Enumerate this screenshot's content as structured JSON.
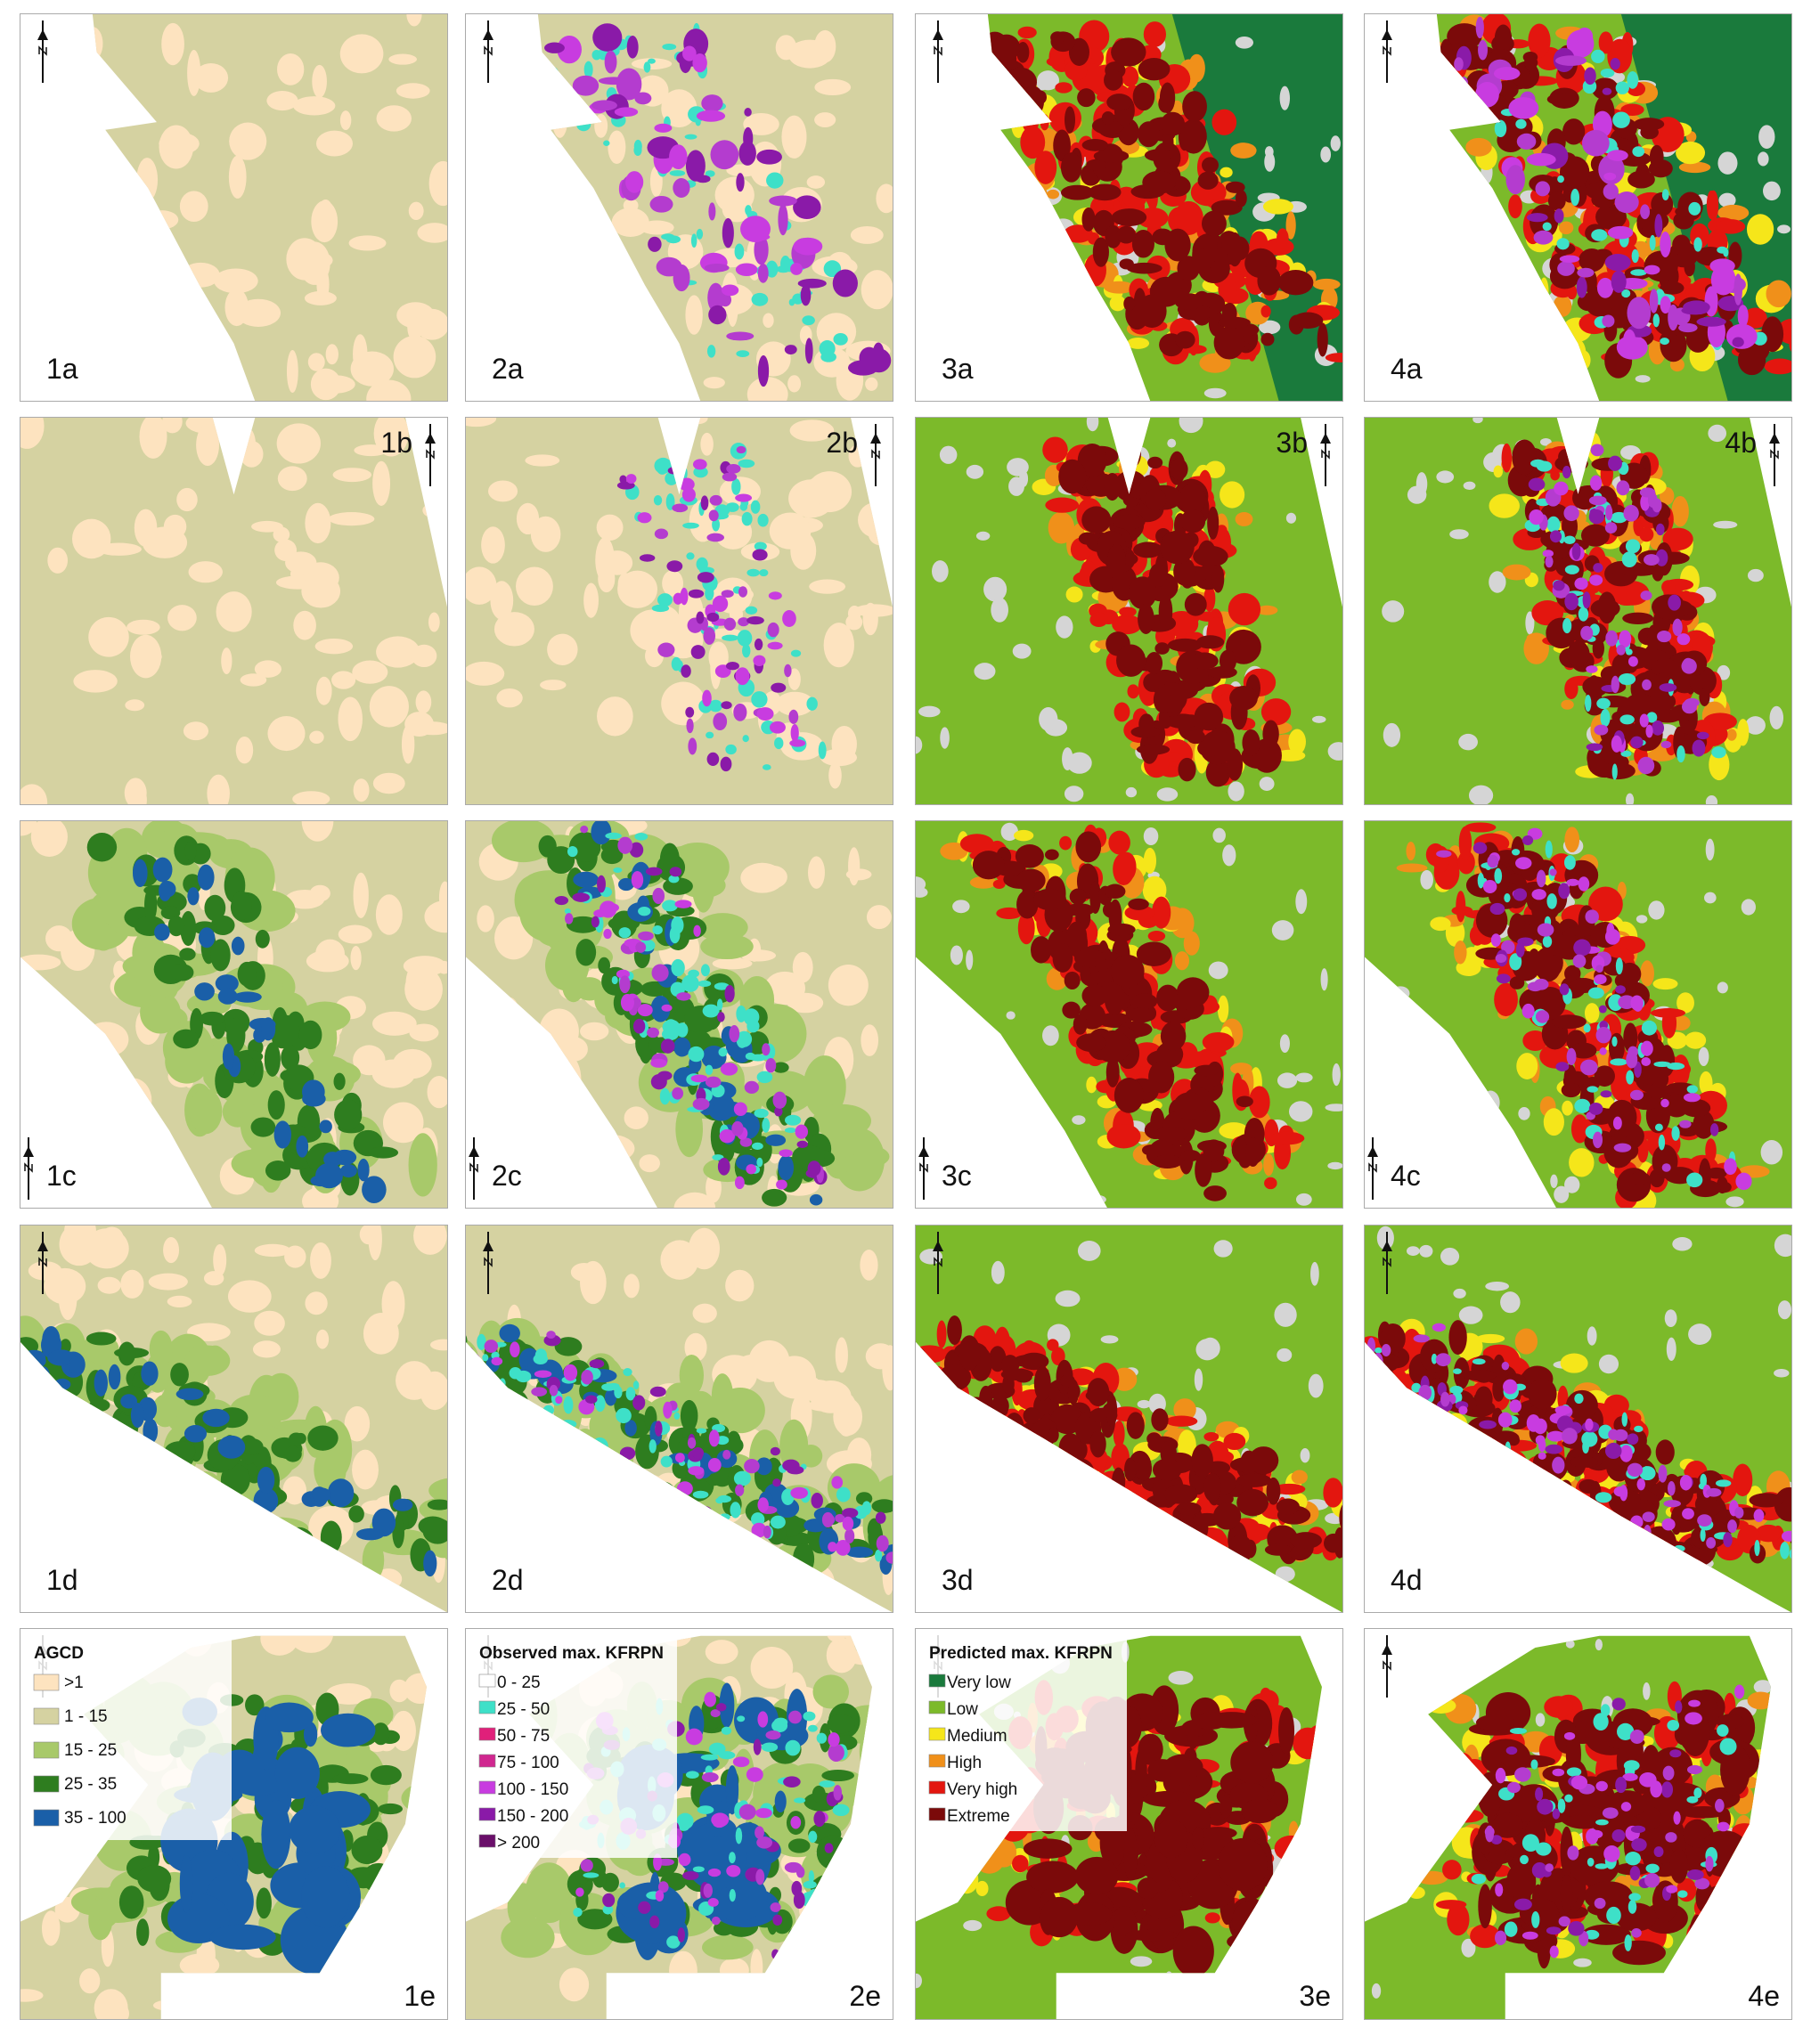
{
  "panels": [
    {
      "label": "1a"
    },
    {
      "label": "2a"
    },
    {
      "label": "3a"
    },
    {
      "label": "4a"
    },
    {
      "label": "1b"
    },
    {
      "label": "2b"
    },
    {
      "label": "3b"
    },
    {
      "label": "4b"
    },
    {
      "label": "1c"
    },
    {
      "label": "2c"
    },
    {
      "label": "3c"
    },
    {
      "label": "4c"
    },
    {
      "label": "1d"
    },
    {
      "label": "2d"
    },
    {
      "label": "3d"
    },
    {
      "label": "4d"
    },
    {
      "label": "1e"
    },
    {
      "label": "2e"
    },
    {
      "label": "3e"
    },
    {
      "label": "4e"
    }
  ],
  "legends": [
    {
      "panel": 16,
      "title": "AGCD",
      "items": [
        {
          "label": ">1",
          "color": "#fde3bf"
        },
        {
          "label": "1 - 15",
          "color": "#d5d2a1"
        },
        {
          "label": "15 - 25",
          "color": "#a8c96a"
        },
        {
          "label": "25 - 35",
          "color": "#2e7d1f"
        },
        {
          "label": "35 - 100",
          "color": "#1a5fa8"
        }
      ]
    },
    {
      "panel": 17,
      "title": "Observed max. KFRPN",
      "items": [
        {
          "label": "0 - 25",
          "color": "#ffffff"
        },
        {
          "label": "25 - 50",
          "color": "#3ee0c8"
        },
        {
          "label": "50 - 75",
          "color": "#e0207a"
        },
        {
          "label": "75 - 100",
          "color": "#d02890"
        },
        {
          "label": "100 - 150",
          "color": "#c83ce0"
        },
        {
          "label": "150 - 200",
          "color": "#8a1aa8"
        },
        {
          "label": "> 200",
          "color": "#6a0f6a"
        }
      ]
    },
    {
      "panel": 18,
      "title": "Predicted max. KFRPN",
      "items": [
        {
          "label": "Very low",
          "color": "#1a7a3c"
        },
        {
          "label": "Low",
          "color": "#7cba2a"
        },
        {
          "label": "Medium",
          "color": "#f5e61a"
        },
        {
          "label": "High",
          "color": "#f0901a"
        },
        {
          "label": "Very high",
          "color": "#e3160f"
        },
        {
          "label": "Extreme",
          "color": "#7b0a0a"
        }
      ]
    }
  ]
}
